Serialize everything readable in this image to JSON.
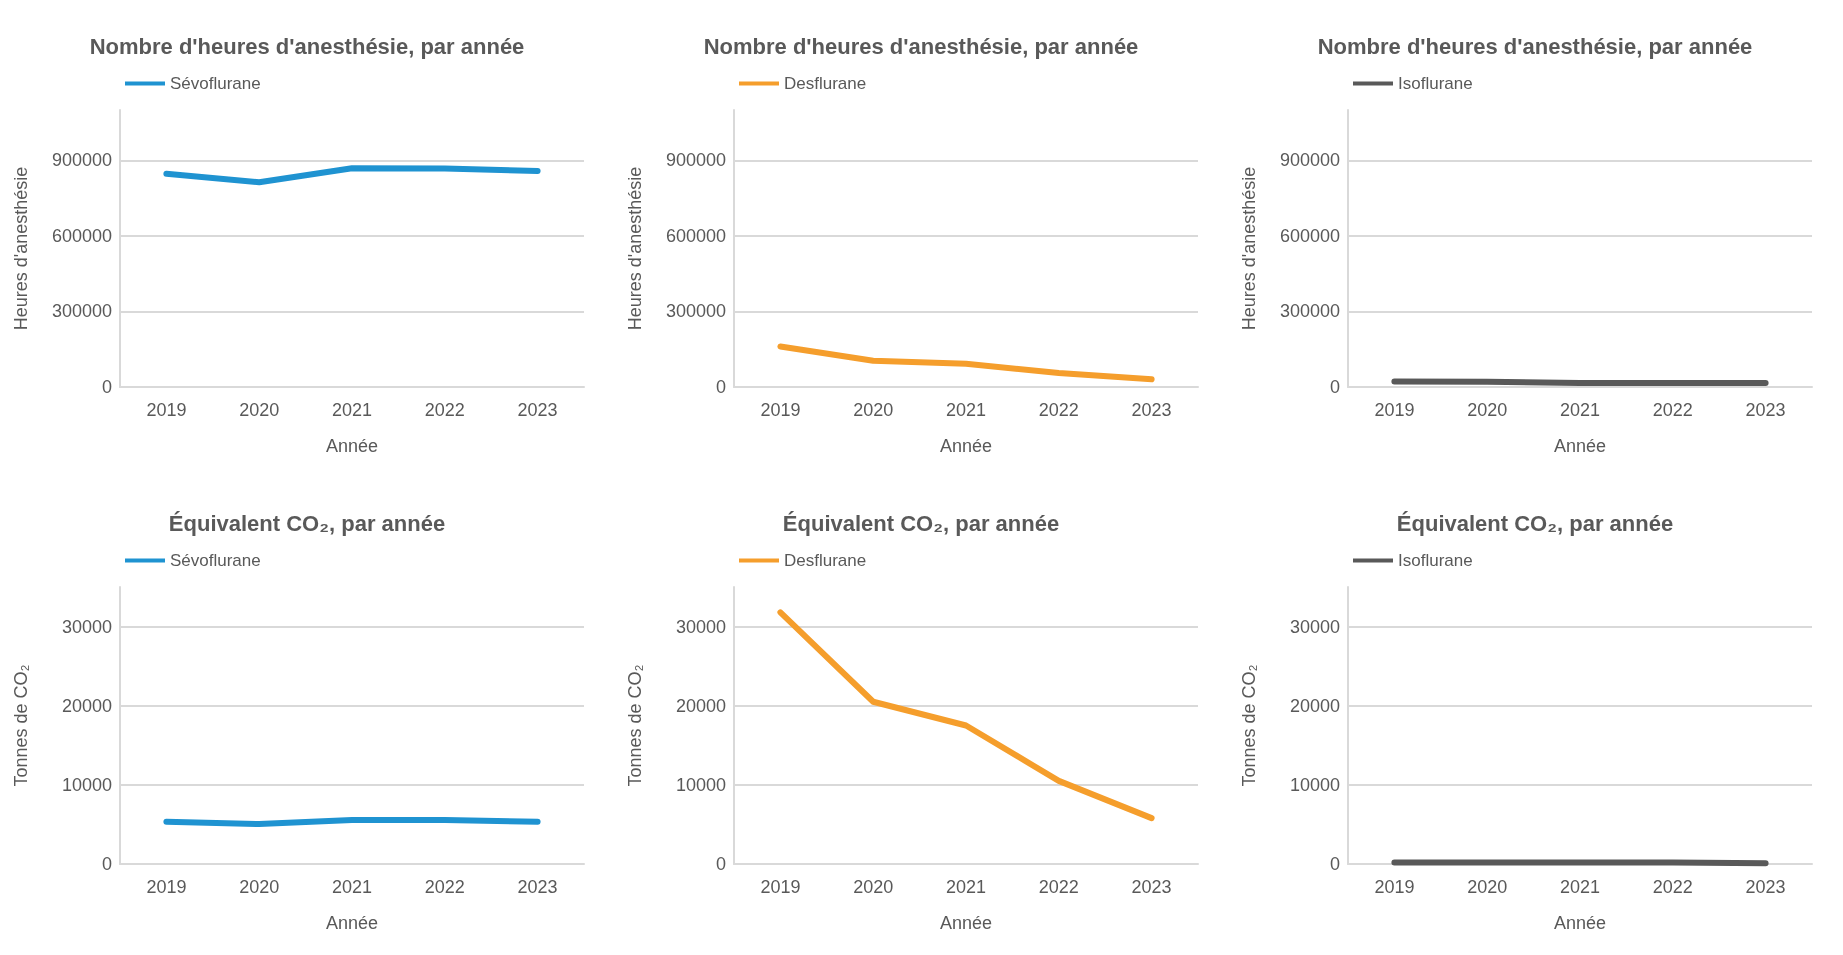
{
  "chart_data": [
    {
      "type": "line",
      "title": "Nombre d'heures d'anesthésie, par année",
      "xlabel": "Année",
      "ylabel": "Heures d'anesthésie",
      "categories": [
        "2019",
        "2020",
        "2021",
        "2022",
        "2023"
      ],
      "series": [
        {
          "name": "Sévoflurane",
          "color": "#1f93d1",
          "values": [
            847000,
            813000,
            869000,
            868000,
            858000
          ]
        }
      ],
      "ylim": [
        0,
        1100000
      ],
      "yticks": [
        0,
        300000,
        600000,
        900000
      ],
      "grid": "y",
      "legend": "top left",
      "marker": "none",
      "line_style": "solid"
    },
    {
      "type": "line",
      "title": "Nombre d'heures d'anesthésie, par année",
      "xlabel": "Année",
      "ylabel": "Heures d'anesthésie",
      "categories": [
        "2019",
        "2020",
        "2021",
        "2022",
        "2023"
      ],
      "series": [
        {
          "name": "Desflurane",
          "color": "#f59e2c",
          "values": [
            161000,
            104000,
            92000,
            56000,
            31000
          ]
        }
      ],
      "ylim": [
        0,
        1100000
      ],
      "yticks": [
        0,
        300000,
        600000,
        900000
      ],
      "grid": "y",
      "legend": "top left",
      "marker": "none",
      "line_style": "solid"
    },
    {
      "type": "line",
      "title": "Nombre d'heures d'anesthésie, par année",
      "xlabel": "Année",
      "ylabel": "Heures d'anesthésie",
      "categories": [
        "2019",
        "2020",
        "2021",
        "2022",
        "2023"
      ],
      "series": [
        {
          "name": "Isoflurane",
          "color": "#595959",
          "values": [
            22000,
            21000,
            16000,
            16000,
            16000
          ]
        }
      ],
      "ylim": [
        0,
        1100000
      ],
      "yticks": [
        0,
        300000,
        600000,
        900000
      ],
      "grid": "y",
      "legend": "top left",
      "marker": "none",
      "line_style": "solid"
    },
    {
      "type": "line",
      "title": "Équivalent CO₂, par année",
      "xlabel": "Année",
      "ylabel": "Tonnes de CO₂",
      "categories": [
        "2019",
        "2020",
        "2021",
        "2022",
        "2023"
      ],
      "series": [
        {
          "name": "Sévoflurane",
          "color": "#1f93d1",
          "values": [
            5350,
            5050,
            5550,
            5550,
            5350
          ]
        }
      ],
      "ylim": [
        0,
        35000
      ],
      "yticks": [
        0,
        10000,
        20000,
        30000
      ],
      "grid": "y",
      "legend": "top left",
      "marker": "none",
      "line_style": "solid"
    },
    {
      "type": "line",
      "title": "Équivalent CO₂, par année",
      "xlabel": "Année",
      "ylabel": "Tonnes de CO₂",
      "categories": [
        "2019",
        "2020",
        "2021",
        "2022",
        "2023"
      ],
      "series": [
        {
          "name": "Desflurane",
          "color": "#f59e2c",
          "values": [
            31800,
            20500,
            17500,
            10500,
            5800
          ]
        }
      ],
      "ylim": [
        0,
        35000
      ],
      "yticks": [
        0,
        10000,
        20000,
        30000
      ],
      "grid": "y",
      "legend": "top left",
      "marker": "none",
      "line_style": "solid"
    },
    {
      "type": "line",
      "title": "Équivalent CO₂, par année",
      "xlabel": "Année",
      "ylabel": "Tonnes de CO₂",
      "categories": [
        "2019",
        "2020",
        "2021",
        "2022",
        "2023"
      ],
      "series": [
        {
          "name": "Isoflurane",
          "color": "#595959",
          "values": [
            200,
            200,
            200,
            200,
            100
          ]
        }
      ],
      "ylim": [
        0,
        35000
      ],
      "yticks": [
        0,
        10000,
        20000,
        30000
      ],
      "grid": "y",
      "legend": "top left",
      "marker": "none",
      "line_style": "solid"
    }
  ]
}
